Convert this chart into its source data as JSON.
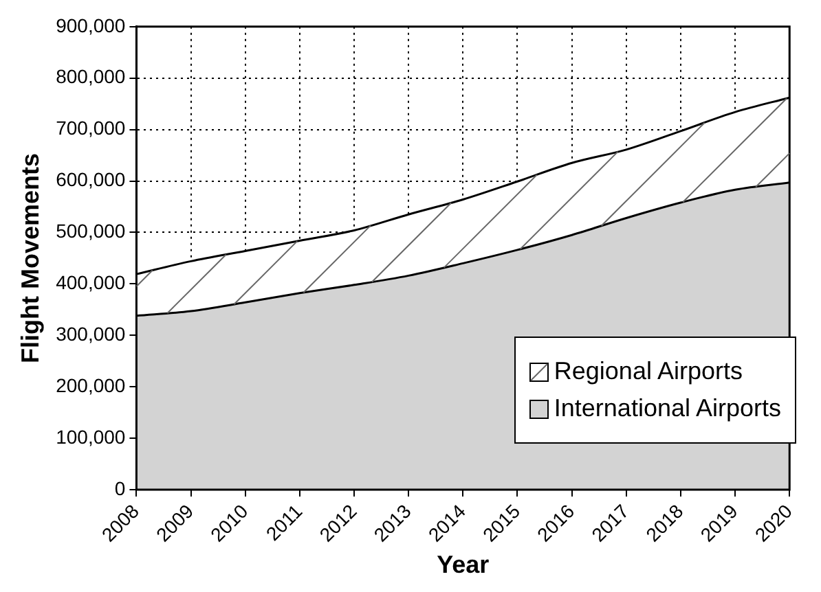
{
  "chart_data": {
    "type": "area",
    "stacked": true,
    "xlabel": "Year",
    "ylabel": "Flight Movements",
    "categories": [
      "2008",
      "2009",
      "2010",
      "2011",
      "2012",
      "2013",
      "2014",
      "2015",
      "2016",
      "2017",
      "2018",
      "2019",
      "2020"
    ],
    "series": [
      {
        "name": "International Airports",
        "color": "#d3d3d3",
        "values": [
          338000,
          347000,
          364000,
          382000,
          398000,
          416000,
          440000,
          466000,
          495000,
          528000,
          558000,
          583000,
          597000
        ]
      },
      {
        "name": "Regional Airports",
        "color": "#ffffff",
        "values": [
          81000,
          97000,
          100000,
          102000,
          106000,
          119000,
          124000,
          133000,
          140000,
          133000,
          139000,
          151000,
          165000
        ]
      }
    ],
    "ylim": [
      0,
      900000
    ],
    "yticks": [
      0,
      {
        "value": 100000,
        "label": "100,000"
      },
      {
        "value": 200000,
        "label": "200,000"
      },
      {
        "value": 300000,
        "label": "300,000"
      },
      {
        "value": 400000,
        "label": "400,000"
      },
      {
        "value": 500000,
        "label": "500,000"
      },
      {
        "value": 600000,
        "label": "600,000"
      },
      {
        "value": 700000,
        "label": "700,000"
      },
      {
        "value": 800000,
        "label": "800,000"
      },
      {
        "value": 900000,
        "label": "900,000"
      }
    ],
    "grid": true,
    "legend": "bottom right"
  }
}
